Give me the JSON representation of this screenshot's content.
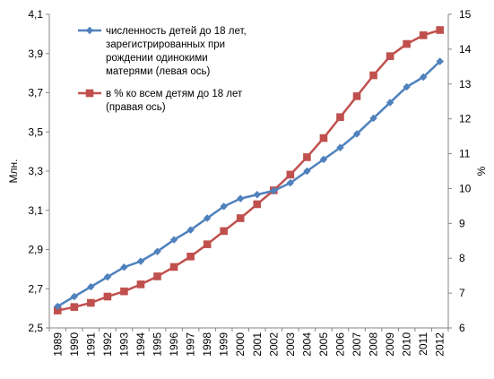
{
  "chart_data": {
    "type": "line",
    "categories": [
      "1989",
      "1990",
      "1991",
      "1992",
      "1993",
      "1994",
      "1995",
      "1996",
      "1997",
      "1998",
      "1999",
      "2000",
      "2001",
      "2002",
      "2003",
      "2004",
      "2005",
      "2006",
      "2007",
      "2008",
      "2009",
      "2010",
      "2011",
      "2012"
    ],
    "series": [
      {
        "name": "численность детей до 18 лет, зарегистрированных при рождении одинокими матерями (левая ось)",
        "legend_lines": [
          "численность детей до 18 лет,",
          "зарегистрированных при",
          "рождении одинокими",
          "матерями (левая ось)"
        ],
        "axis": "left",
        "marker": "diamond",
        "color": "#4f81bd",
        "values": [
          2.61,
          2.66,
          2.71,
          2.76,
          2.81,
          2.84,
          2.89,
          2.95,
          3.0,
          3.06,
          3.12,
          3.16,
          3.18,
          3.2,
          3.24,
          3.3,
          3.36,
          3.42,
          3.49,
          3.57,
          3.65,
          3.73,
          3.78,
          3.86
        ]
      },
      {
        "name": "в % ко всем детям до 18 лет (правая ось)",
        "legend_lines": [
          "в % ко всем детям до 18 лет",
          "(правая ось)"
        ],
        "axis": "right",
        "marker": "square",
        "color": "#c0504d",
        "values": [
          6.5,
          6.6,
          6.72,
          6.9,
          7.05,
          7.25,
          7.48,
          7.75,
          8.05,
          8.4,
          8.78,
          9.15,
          9.55,
          9.95,
          10.4,
          10.9,
          11.45,
          12.05,
          12.65,
          13.25,
          13.8,
          14.15,
          14.4,
          14.55
        ]
      }
    ],
    "y_left": {
      "label": "Млн.",
      "ylim": [
        2.5,
        4.1
      ],
      "ticks": [
        "2,5",
        "2,7",
        "2,9",
        "3,1",
        "3,3",
        "3,5",
        "3,7",
        "3,9",
        "4,1"
      ]
    },
    "y_right": {
      "label": "%",
      "ylim": [
        6,
        15
      ],
      "ticks": [
        "6",
        "7",
        "8",
        "9",
        "10",
        "11",
        "12",
        "13",
        "14",
        "15"
      ]
    },
    "grid": false,
    "legend_position": "top-left"
  }
}
